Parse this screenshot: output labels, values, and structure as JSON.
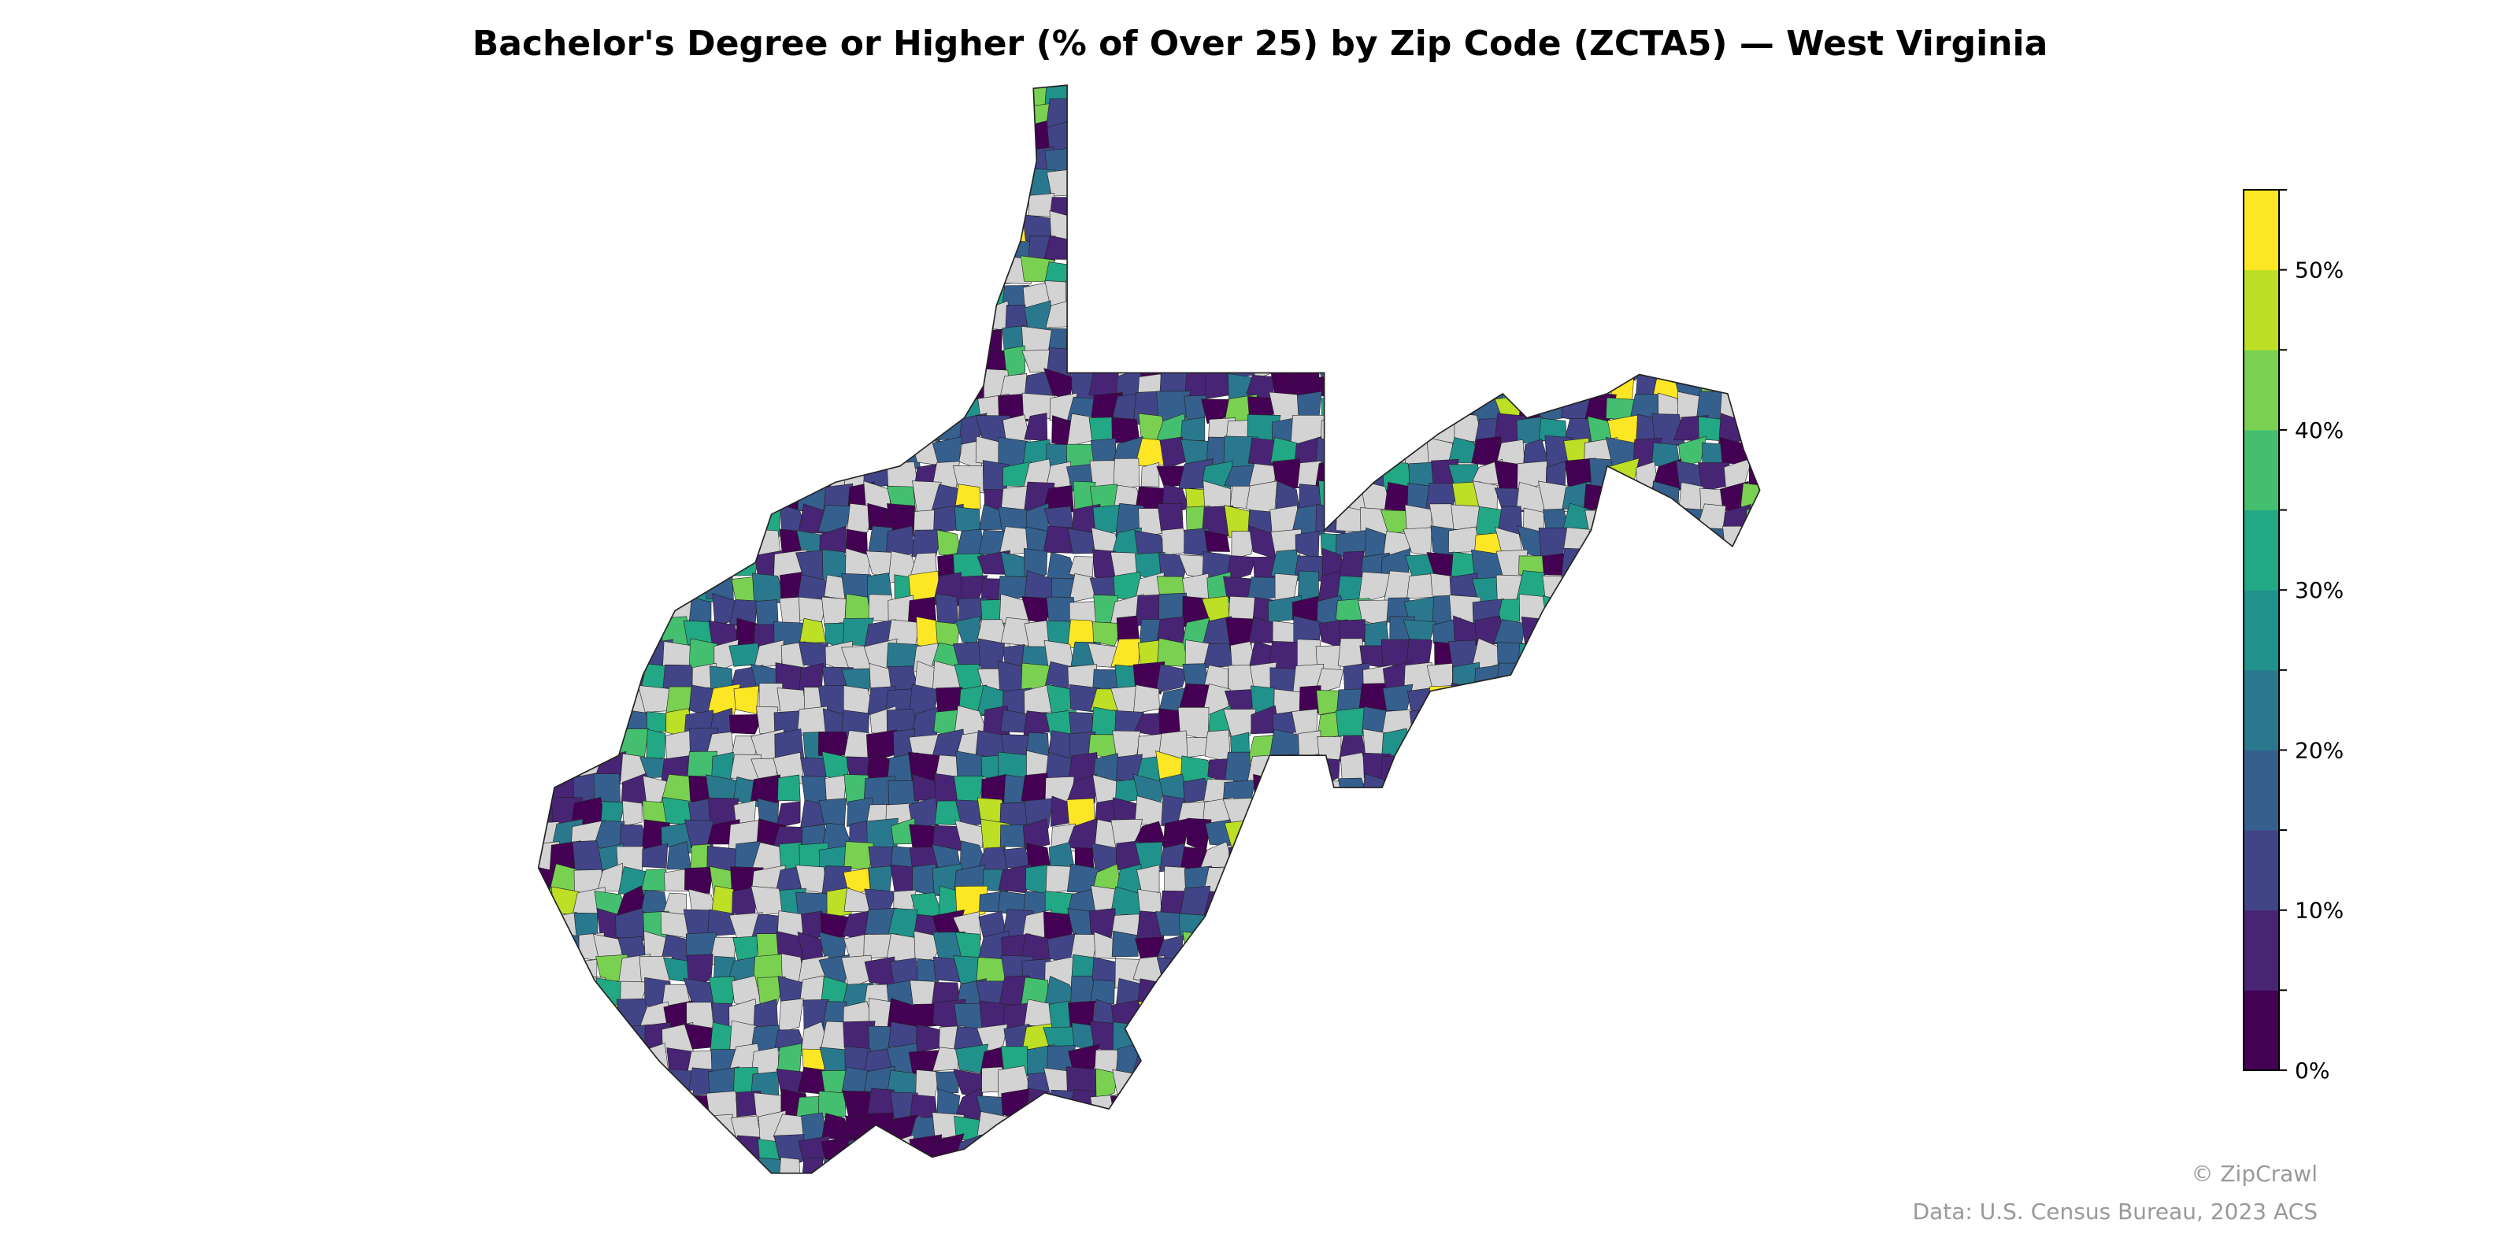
{
  "title": "Bachelor's Degree or Higher (% of Over 25) by Zip Code (ZCTA5) — West Virginia",
  "colorbar": {
    "min": 0,
    "max": 55,
    "step": 5,
    "tick_labels": [
      "0%",
      "10%",
      "20%",
      "30%",
      "40%",
      "50%"
    ],
    "tick_values": [
      0,
      10,
      20,
      30,
      40,
      50
    ],
    "colors": [
      "#440154",
      "#482475",
      "#414487",
      "#355f8d",
      "#2a788e",
      "#21918c",
      "#22a884",
      "#44bf70",
      "#7ad151",
      "#bddf26",
      "#fde725"
    ],
    "no_data_color": "#d3d3d3"
  },
  "credits": {
    "copyright": "© ZipCrawl",
    "source": "Data: U.S. Census Bureau, 2023 ACS"
  }
}
